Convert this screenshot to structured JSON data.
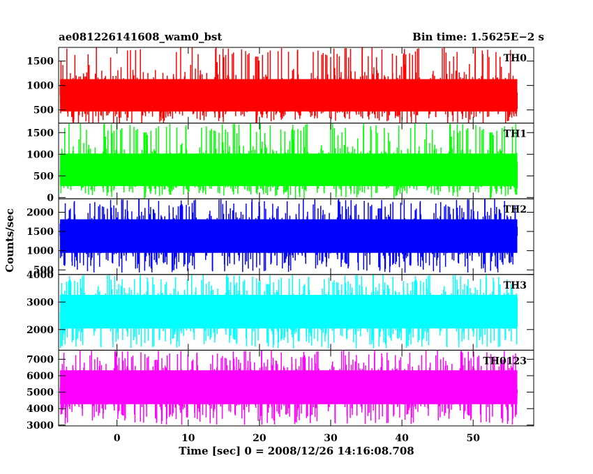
{
  "title": "ae081226141608_wam0_bst",
  "bin_time_label": "Bin time: 1.5625E−2 s",
  "xlabel": "Time [sec] 0 = 2008/12/26 14:16:08.708",
  "ylabel": "Counts/sec",
  "chart_data": {
    "type": "line",
    "title": "ae081226141608_wam0_bst",
    "xlabel": "Time [sec] 0 = 2008/12/26 14:16:08.708",
    "ylabel": "Counts/sec",
    "xlim": [
      -8.2,
      58.5
    ],
    "x_ticks": [
      0,
      10,
      20,
      30,
      40,
      50
    ],
    "x_data_range": [
      -8,
      56.2
    ],
    "bin_time_s": 0.015625,
    "grid": false,
    "series": [
      {
        "name": "TH0",
        "color": "#ff0000",
        "ylim": [
          230,
          1780
        ],
        "y_ticks": [
          500,
          1000,
          1500
        ],
        "mean": 800,
        "low": 320,
        "high": 1780
      },
      {
        "name": "TH1",
        "color": "#00ff00",
        "ylim": [
          -30,
          1720
        ],
        "y_ticks": [
          0,
          500,
          1000,
          1500
        ],
        "mean": 640,
        "low": 60,
        "high": 1720
      },
      {
        "name": "TH2",
        "color": "#0000ff",
        "ylim": [
          380,
          2350
        ],
        "y_ticks": [
          500,
          1000,
          1500,
          2000
        ],
        "mean": 1380,
        "low": 420,
        "high": 2350
      },
      {
        "name": "TH3",
        "color": "#00ffff",
        "ylim": [
          1250,
          4000
        ],
        "y_ticks": [
          2000,
          3000,
          4000
        ],
        "mean": 2650,
        "low": 1300,
        "high": 4000
      },
      {
        "name": "TH0123",
        "color": "#ff00ff",
        "ylim": [
          2950,
          7550
        ],
        "y_ticks": [
          3000,
          4000,
          5000,
          6000,
          7000
        ],
        "mean": 5300,
        "low": 3000,
        "high": 7550
      }
    ]
  }
}
